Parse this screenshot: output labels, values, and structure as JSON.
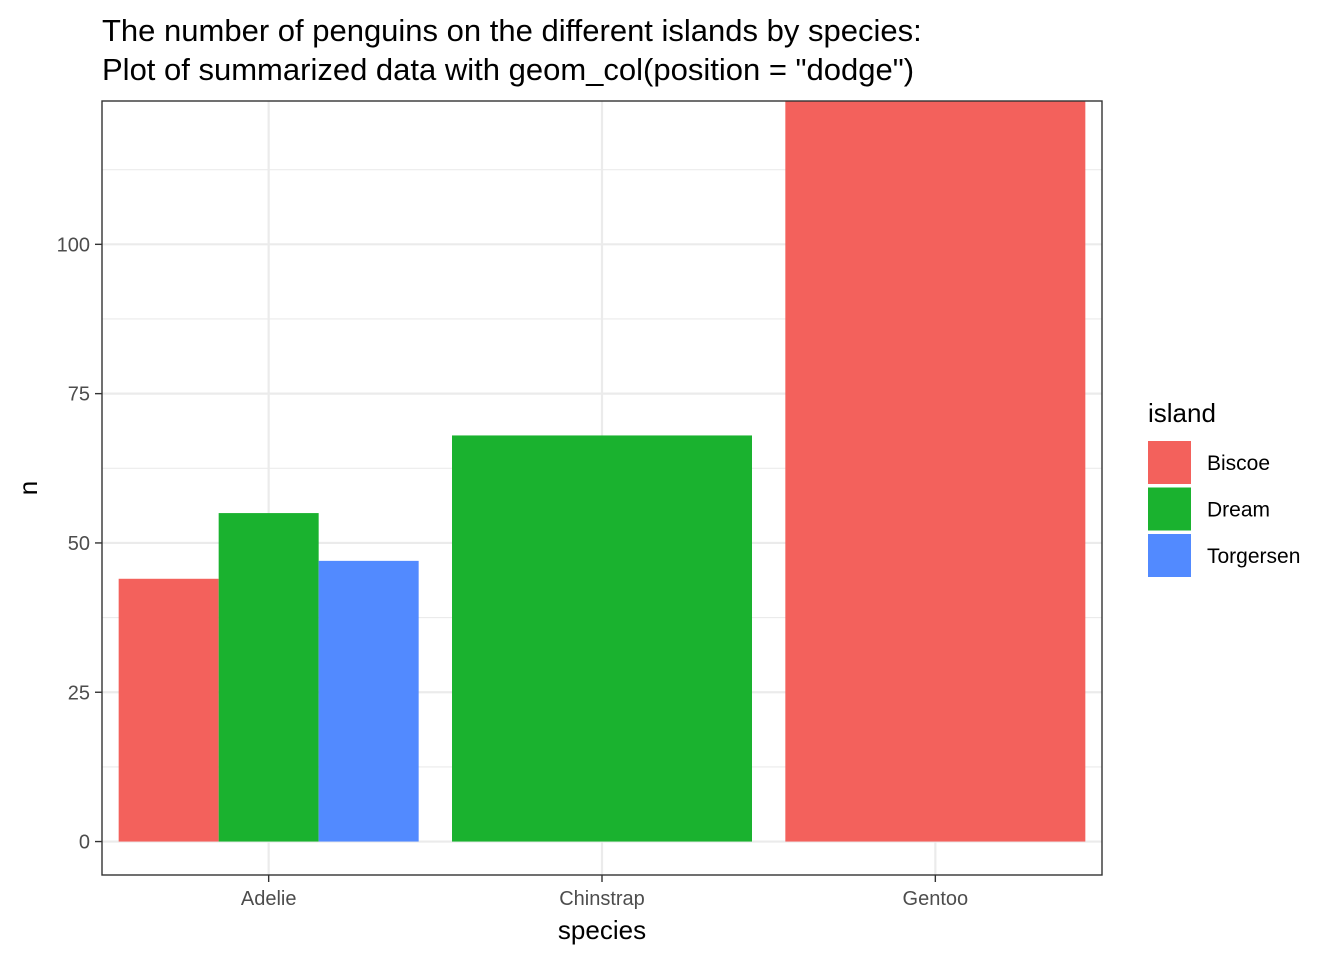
{
  "title_lines": [
    "The number of penguins on the different islands by species:",
    "Plot of summarized data with geom_col(position = \"dodge\")"
  ],
  "chart_data": {
    "type": "bar",
    "position": "dodge",
    "categories": [
      "Adelie",
      "Chinstrap",
      "Gentoo"
    ],
    "series": [
      {
        "name": "Biscoe",
        "color": "#F3615C",
        "values": [
          44,
          null,
          124
        ]
      },
      {
        "name": "Dream",
        "color": "#1AB22F",
        "values": [
          55,
          68,
          null
        ]
      },
      {
        "name": "Torgersen",
        "color": "#528AFF",
        "values": [
          47,
          null,
          null
        ]
      }
    ],
    "xlabel": "species",
    "ylabel": "n",
    "ylim": [
      -5.6,
      124
    ],
    "yticks": [
      0,
      25,
      50,
      75,
      100
    ],
    "grid": true,
    "legend": {
      "title": "island",
      "placement": "right"
    }
  }
}
